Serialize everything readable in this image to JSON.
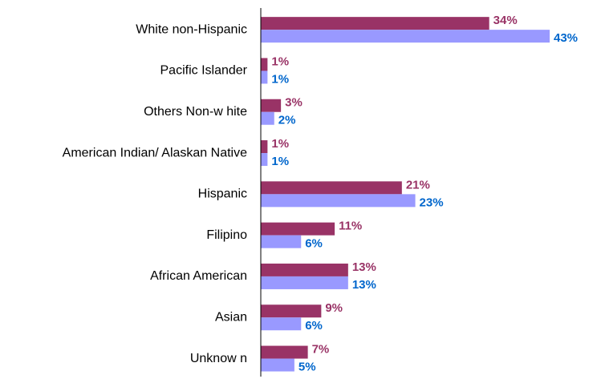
{
  "chart_data": {
    "type": "bar",
    "orientation": "horizontal",
    "categories": [
      "White non-Hispanic",
      "Pacific Islander",
      "Others Non-w hite",
      "American Indian/ Alaskan Native",
      "Hispanic",
      "Filipino",
      "African American",
      "Asian",
      "Unknow n"
    ],
    "series": [
      {
        "color": "#993366",
        "label_color": "#993366",
        "values": [
          34,
          1,
          3,
          1,
          21,
          11,
          13,
          9,
          7
        ],
        "value_labels": [
          "34%",
          "1%",
          "3%",
          "1%",
          "21%",
          "11%",
          "13%",
          "9%",
          "7%"
        ]
      },
      {
        "color": "#9999ff",
        "label_color": "#0066cc",
        "values": [
          43,
          1,
          2,
          1,
          23,
          6,
          13,
          6,
          5
        ],
        "value_labels": [
          "43%",
          "1%",
          "2%",
          "1%",
          "23%",
          "6%",
          "13%",
          "6%",
          "5%"
        ]
      }
    ]
  }
}
